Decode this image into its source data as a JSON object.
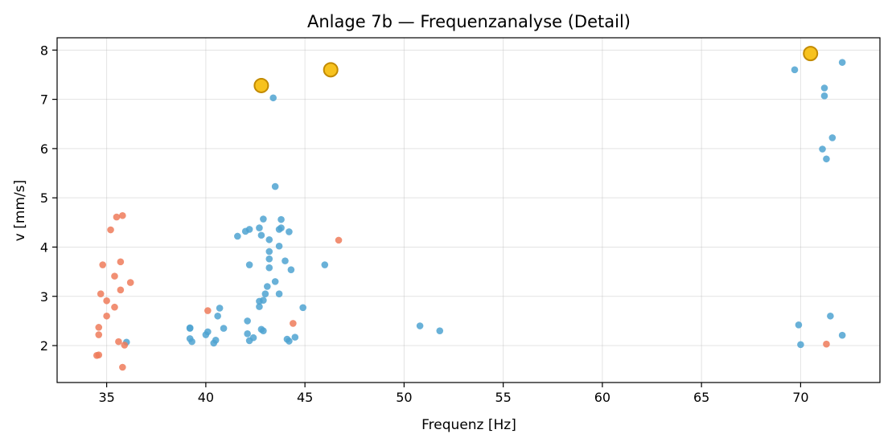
{
  "chart_data": {
    "type": "scatter",
    "title": "Anlage 7b — Frequenzanalyse (Detail)",
    "xlabel": "Frequenz [Hz]",
    "ylabel": "v [mm/s]",
    "xlim": [
      32.5,
      74.0
    ],
    "ylim": [
      1.25,
      8.25
    ],
    "xticks": [
      35,
      40,
      45,
      50,
      55,
      60,
      65,
      70
    ],
    "yticks": [
      2,
      3,
      4,
      5,
      6,
      7,
      8
    ],
    "grid": true,
    "series": [
      {
        "color": "#4fa3d1",
        "points": [
          [
            36.0,
            2.07
          ],
          [
            39.2,
            2.36
          ],
          [
            39.2,
            2.35
          ],
          [
            39.2,
            2.14
          ],
          [
            39.3,
            2.08
          ],
          [
            40.0,
            2.22
          ],
          [
            40.1,
            2.28
          ],
          [
            40.4,
            2.05
          ],
          [
            40.5,
            2.11
          ],
          [
            40.9,
            2.35
          ],
          [
            40.6,
            2.6
          ],
          [
            40.7,
            2.76
          ],
          [
            42.1,
            2.24
          ],
          [
            42.2,
            2.1
          ],
          [
            42.4,
            2.16
          ],
          [
            42.8,
            2.33
          ],
          [
            42.9,
            2.3
          ],
          [
            42.1,
            2.5
          ],
          [
            42.7,
            2.9
          ],
          [
            42.9,
            2.92
          ],
          [
            42.7,
            2.79
          ],
          [
            43.0,
            3.05
          ],
          [
            43.1,
            3.2
          ],
          [
            43.5,
            3.3
          ],
          [
            43.7,
            3.05
          ],
          [
            44.9,
            2.77
          ],
          [
            44.1,
            2.13
          ],
          [
            44.2,
            2.09
          ],
          [
            44.5,
            2.17
          ],
          [
            42.2,
            3.64
          ],
          [
            43.2,
            3.58
          ],
          [
            43.2,
            3.76
          ],
          [
            43.2,
            3.91
          ],
          [
            44.0,
            3.72
          ],
          [
            44.3,
            3.54
          ],
          [
            43.7,
            4.02
          ],
          [
            41.6,
            4.22
          ],
          [
            42.0,
            4.32
          ],
          [
            42.2,
            4.36
          ],
          [
            42.7,
            4.39
          ],
          [
            42.8,
            4.24
          ],
          [
            43.2,
            4.15
          ],
          [
            43.7,
            4.36
          ],
          [
            43.8,
            4.39
          ],
          [
            44.2,
            4.31
          ],
          [
            42.9,
            4.57
          ],
          [
            43.8,
            4.56
          ],
          [
            43.5,
            5.23
          ],
          [
            43.4,
            7.03
          ],
          [
            46.0,
            3.64
          ],
          [
            50.8,
            2.4
          ],
          [
            51.8,
            2.3
          ],
          [
            69.7,
            7.6
          ],
          [
            72.1,
            7.75
          ],
          [
            71.2,
            7.23
          ],
          [
            71.2,
            7.07
          ],
          [
            71.6,
            6.22
          ],
          [
            71.1,
            5.99
          ],
          [
            71.3,
            5.79
          ],
          [
            69.9,
            2.42
          ],
          [
            70.0,
            2.02
          ],
          [
            71.5,
            2.6
          ],
          [
            72.1,
            2.21
          ]
        ]
      },
      {
        "color": "#ef7b5a",
        "points": [
          [
            34.5,
            1.8
          ],
          [
            34.6,
            1.81
          ],
          [
            34.6,
            2.22
          ],
          [
            34.6,
            2.37
          ],
          [
            34.7,
            3.05
          ],
          [
            34.8,
            3.64
          ],
          [
            35.0,
            2.6
          ],
          [
            35.0,
            2.91
          ],
          [
            35.2,
            4.35
          ],
          [
            35.4,
            2.78
          ],
          [
            35.4,
            3.41
          ],
          [
            35.5,
            4.61
          ],
          [
            35.6,
            2.08
          ],
          [
            35.7,
            3.13
          ],
          [
            35.7,
            3.7
          ],
          [
            35.8,
            4.64
          ],
          [
            35.8,
            1.56
          ],
          [
            35.9,
            2.01
          ],
          [
            36.2,
            3.28
          ],
          [
            40.1,
            2.71
          ],
          [
            44.4,
            2.45
          ],
          [
            46.7,
            4.14
          ],
          [
            71.3,
            2.03
          ]
        ]
      },
      {
        "color": "#f7c21e",
        "edge": "#c28a00",
        "highlight": true,
        "points": [
          [
            42.8,
            7.28
          ],
          [
            46.3,
            7.6
          ],
          [
            70.5,
            7.93
          ]
        ]
      }
    ]
  }
}
